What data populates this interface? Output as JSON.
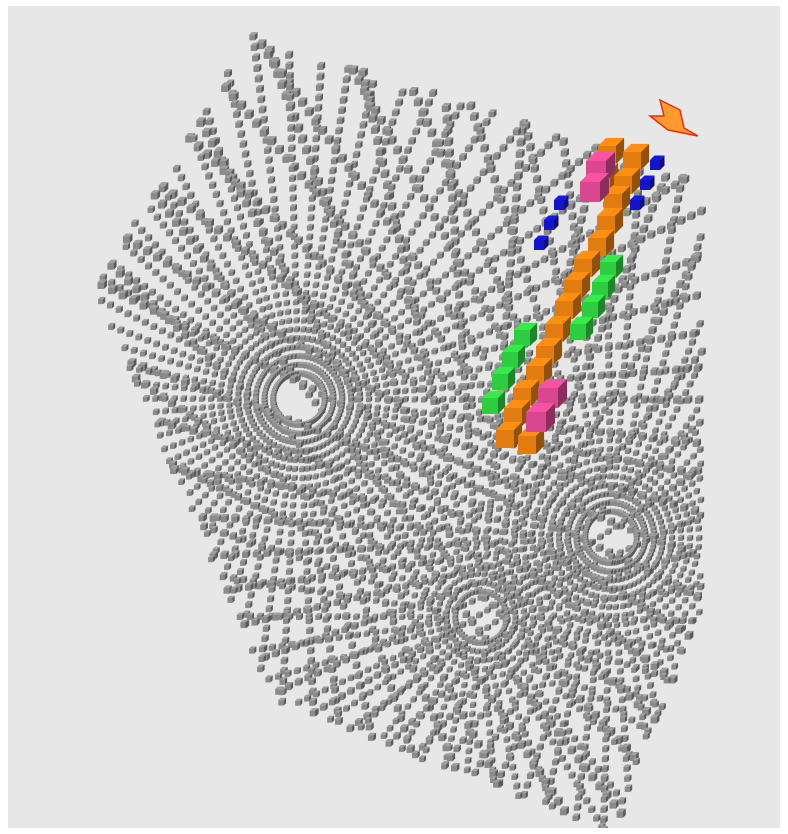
{
  "scene": {
    "background": "#e7e7e7",
    "voxel_colors": {
      "grid": "#8a8a8a",
      "rail": "#e07c10",
      "pink": "#d8478f",
      "green": "#2ecc40",
      "blue": "#1515c8",
      "marker": "#ff9a30"
    },
    "icons": {
      "cursor": "arrow-down-marker-icon"
    }
  }
}
